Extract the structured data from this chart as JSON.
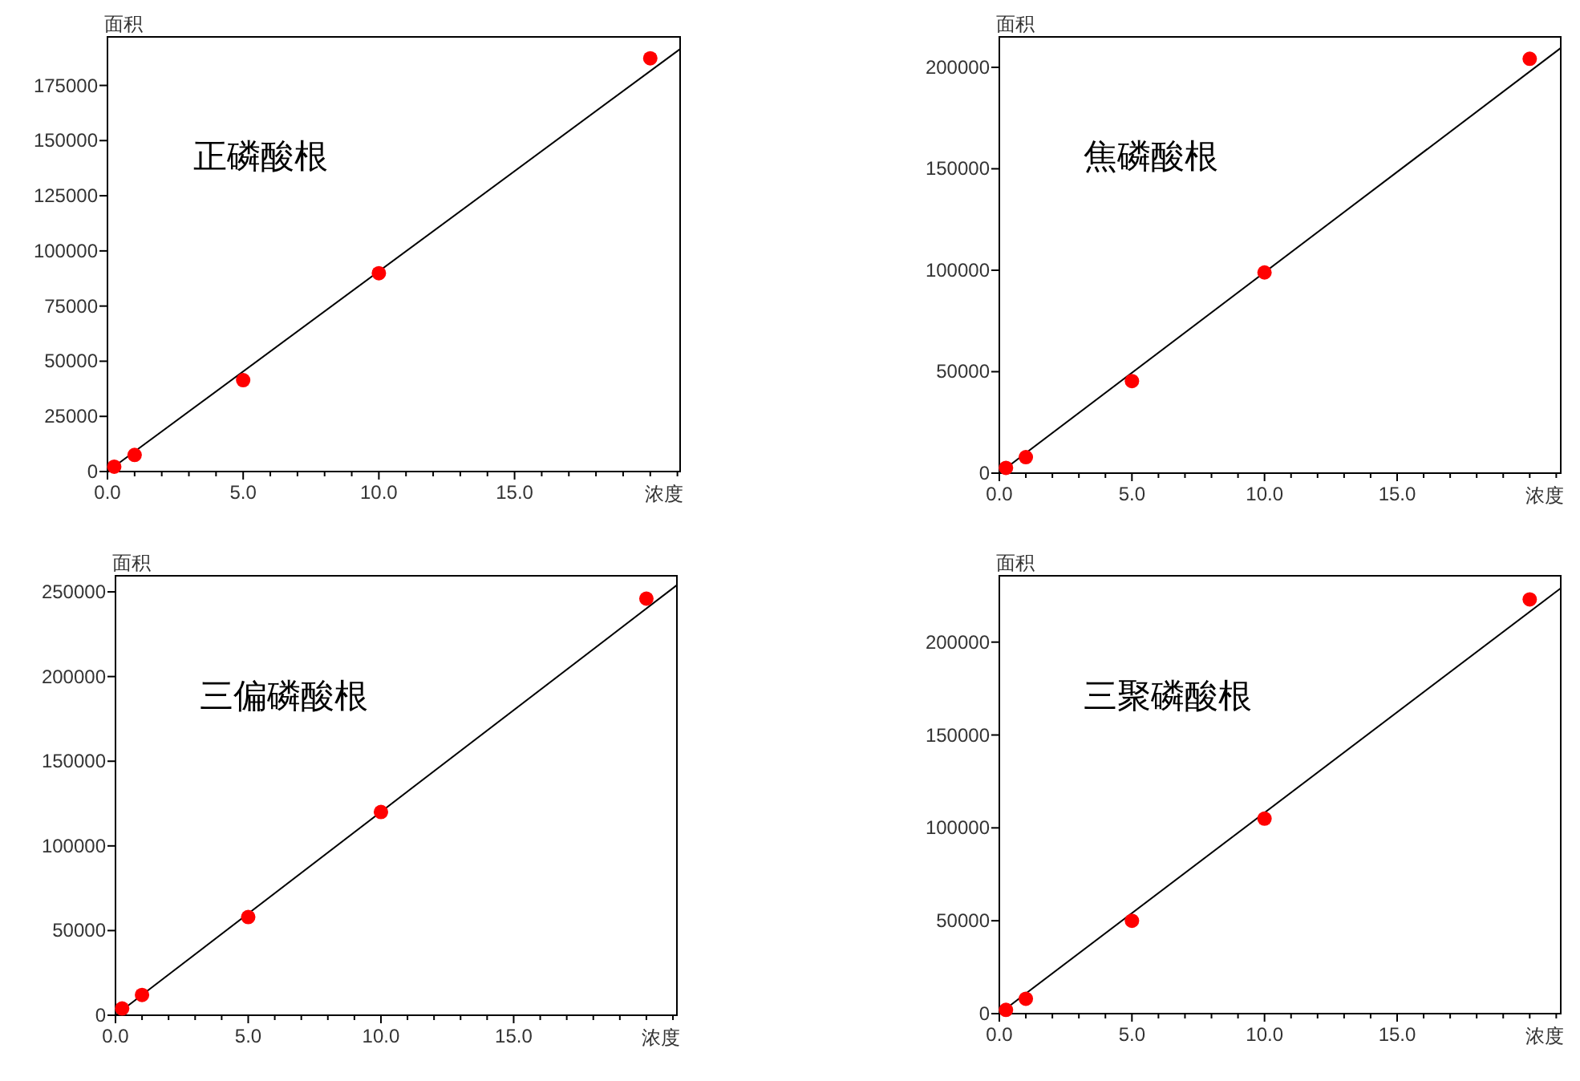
{
  "chart_data": [
    {
      "type": "scatter",
      "marker": "circle",
      "xlabel": "浓度",
      "ylabel": "面积",
      "annotations": [
        "正磷酸根"
      ],
      "xlim": [
        0,
        21.1
      ],
      "ylim": [
        0,
        197000
      ],
      "xticks": [
        {
          "value": 0,
          "label": "0.0"
        },
        {
          "value": 1,
          "label": null
        },
        {
          "value": 2,
          "label": null
        },
        {
          "value": 3,
          "label": null
        },
        {
          "value": 4,
          "label": null
        },
        {
          "value": 5,
          "label": "5.0"
        },
        {
          "value": 6,
          "label": null
        },
        {
          "value": 7,
          "label": null
        },
        {
          "value": 8,
          "label": null
        },
        {
          "value": 9,
          "label": null
        },
        {
          "value": 10,
          "label": "10.0"
        },
        {
          "value": 11,
          "label": null
        },
        {
          "value": 12,
          "label": null
        },
        {
          "value": 13,
          "label": null
        },
        {
          "value": 14,
          "label": null
        },
        {
          "value": 15,
          "label": "15.0"
        },
        {
          "value": 16,
          "label": null
        },
        {
          "value": 17,
          "label": null
        },
        {
          "value": 18,
          "label": null
        },
        {
          "value": 19,
          "label": null
        },
        {
          "value": 20,
          "label": null
        },
        {
          "value": 21,
          "label": null
        }
      ],
      "yticks": [
        0,
        25000,
        50000,
        75000,
        100000,
        125000,
        150000,
        175000
      ],
      "series": [
        {
          "type": "line",
          "marker": "none",
          "color": "#000000",
          "x": [
            0,
            21.1
          ],
          "values": [
            0,
            191500
          ]
        },
        {
          "color": "#ff0000",
          "x": [
            0.25,
            1,
            5,
            10,
            20
          ],
          "values": [
            2200,
            7500,
            41400,
            89900,
            187300
          ]
        }
      ]
    },
    {
      "type": "scatter",
      "marker": "circle",
      "xlabel": "浓度",
      "ylabel": "面积",
      "annotations": [
        "焦磷酸根"
      ],
      "xlim": [
        0,
        21.17
      ],
      "ylim": [
        0,
        215000
      ],
      "xticks": [
        {
          "value": 0,
          "label": "0.0"
        },
        {
          "value": 1,
          "label": null
        },
        {
          "value": 2,
          "label": null
        },
        {
          "value": 3,
          "label": null
        },
        {
          "value": 4,
          "label": null
        },
        {
          "value": 5,
          "label": "5.0"
        },
        {
          "value": 6,
          "label": null
        },
        {
          "value": 7,
          "label": null
        },
        {
          "value": 8,
          "label": null
        },
        {
          "value": 9,
          "label": null
        },
        {
          "value": 10,
          "label": "10.0"
        },
        {
          "value": 11,
          "label": null
        },
        {
          "value": 12,
          "label": null
        },
        {
          "value": 13,
          "label": null
        },
        {
          "value": 14,
          "label": null
        },
        {
          "value": 15,
          "label": "15.0"
        },
        {
          "value": 16,
          "label": null
        },
        {
          "value": 17,
          "label": null
        },
        {
          "value": 18,
          "label": null
        },
        {
          "value": 19,
          "label": null
        },
        {
          "value": 20,
          "label": null
        },
        {
          "value": 21,
          "label": null
        }
      ],
      "yticks": [
        0,
        50000,
        100000,
        150000,
        200000
      ],
      "series": [
        {
          "type": "line",
          "marker": "none",
          "color": "#000000",
          "x": [
            0,
            21.17
          ],
          "values": [
            0,
            209500
          ]
        },
        {
          "color": "#ff0000",
          "x": [
            0.25,
            1,
            5,
            10,
            20
          ],
          "values": [
            2600,
            7900,
            45400,
            98900,
            204200
          ]
        }
      ]
    },
    {
      "type": "scatter",
      "marker": "circle",
      "xlabel": "浓度",
      "ylabel": "面积",
      "annotations": [
        "三偏磷酸根"
      ],
      "xlim": [
        0,
        21.15
      ],
      "ylim": [
        0,
        259500
      ],
      "xticks": [
        {
          "value": 0,
          "label": "0.0"
        },
        {
          "value": 1,
          "label": null
        },
        {
          "value": 2,
          "label": null
        },
        {
          "value": 3,
          "label": null
        },
        {
          "value": 4,
          "label": null
        },
        {
          "value": 5,
          "label": "5.0"
        },
        {
          "value": 6,
          "label": null
        },
        {
          "value": 7,
          "label": null
        },
        {
          "value": 8,
          "label": null
        },
        {
          "value": 9,
          "label": null
        },
        {
          "value": 10,
          "label": "10.0"
        },
        {
          "value": 11,
          "label": null
        },
        {
          "value": 12,
          "label": null
        },
        {
          "value": 13,
          "label": null
        },
        {
          "value": 14,
          "label": null
        },
        {
          "value": 15,
          "label": "15.0"
        },
        {
          "value": 16,
          "label": null
        },
        {
          "value": 17,
          "label": null
        },
        {
          "value": 18,
          "label": null
        },
        {
          "value": 19,
          "label": null
        },
        {
          "value": 20,
          "label": null
        },
        {
          "value": 21,
          "label": null
        }
      ],
      "yticks": [
        0,
        50000,
        100000,
        150000,
        200000,
        250000
      ],
      "series": [
        {
          "type": "line",
          "marker": "none",
          "color": "#000000",
          "x": [
            0,
            21.15
          ],
          "values": [
            0,
            254000
          ]
        },
        {
          "color": "#ff0000",
          "x": [
            0.25,
            1,
            5,
            10,
            20
          ],
          "values": [
            4000,
            12000,
            58000,
            120000,
            246000
          ]
        }
      ]
    },
    {
      "type": "scatter",
      "marker": "circle",
      "xlabel": "浓度",
      "ylabel": "面积",
      "annotations": [
        "三聚磷酸根"
      ],
      "xlim": [
        0,
        21.17
      ],
      "ylim": [
        0,
        235700
      ],
      "xticks": [
        {
          "value": 0,
          "label": "0.0"
        },
        {
          "value": 1,
          "label": null
        },
        {
          "value": 2,
          "label": null
        },
        {
          "value": 3,
          "label": null
        },
        {
          "value": 4,
          "label": null
        },
        {
          "value": 5,
          "label": "5.0"
        },
        {
          "value": 6,
          "label": null
        },
        {
          "value": 7,
          "label": null
        },
        {
          "value": 8,
          "label": null
        },
        {
          "value": 9,
          "label": null
        },
        {
          "value": 10,
          "label": "10.0"
        },
        {
          "value": 11,
          "label": null
        },
        {
          "value": 12,
          "label": null
        },
        {
          "value": 13,
          "label": null
        },
        {
          "value": 14,
          "label": null
        },
        {
          "value": 15,
          "label": "15.0"
        },
        {
          "value": 16,
          "label": null
        },
        {
          "value": 17,
          "label": null
        },
        {
          "value": 18,
          "label": null
        },
        {
          "value": 19,
          "label": null
        },
        {
          "value": 20,
          "label": null
        },
        {
          "value": 21,
          "label": null
        }
      ],
      "yticks": [
        0,
        50000,
        100000,
        150000,
        200000
      ],
      "series": [
        {
          "type": "line",
          "marker": "none",
          "color": "#000000",
          "x": [
            0,
            21.17
          ],
          "values": [
            0,
            229000
          ]
        },
        {
          "color": "#ff0000",
          "x": [
            0.25,
            1,
            5,
            10,
            20
          ],
          "values": [
            2000,
            8000,
            50000,
            105000,
            223000
          ]
        }
      ]
    }
  ]
}
